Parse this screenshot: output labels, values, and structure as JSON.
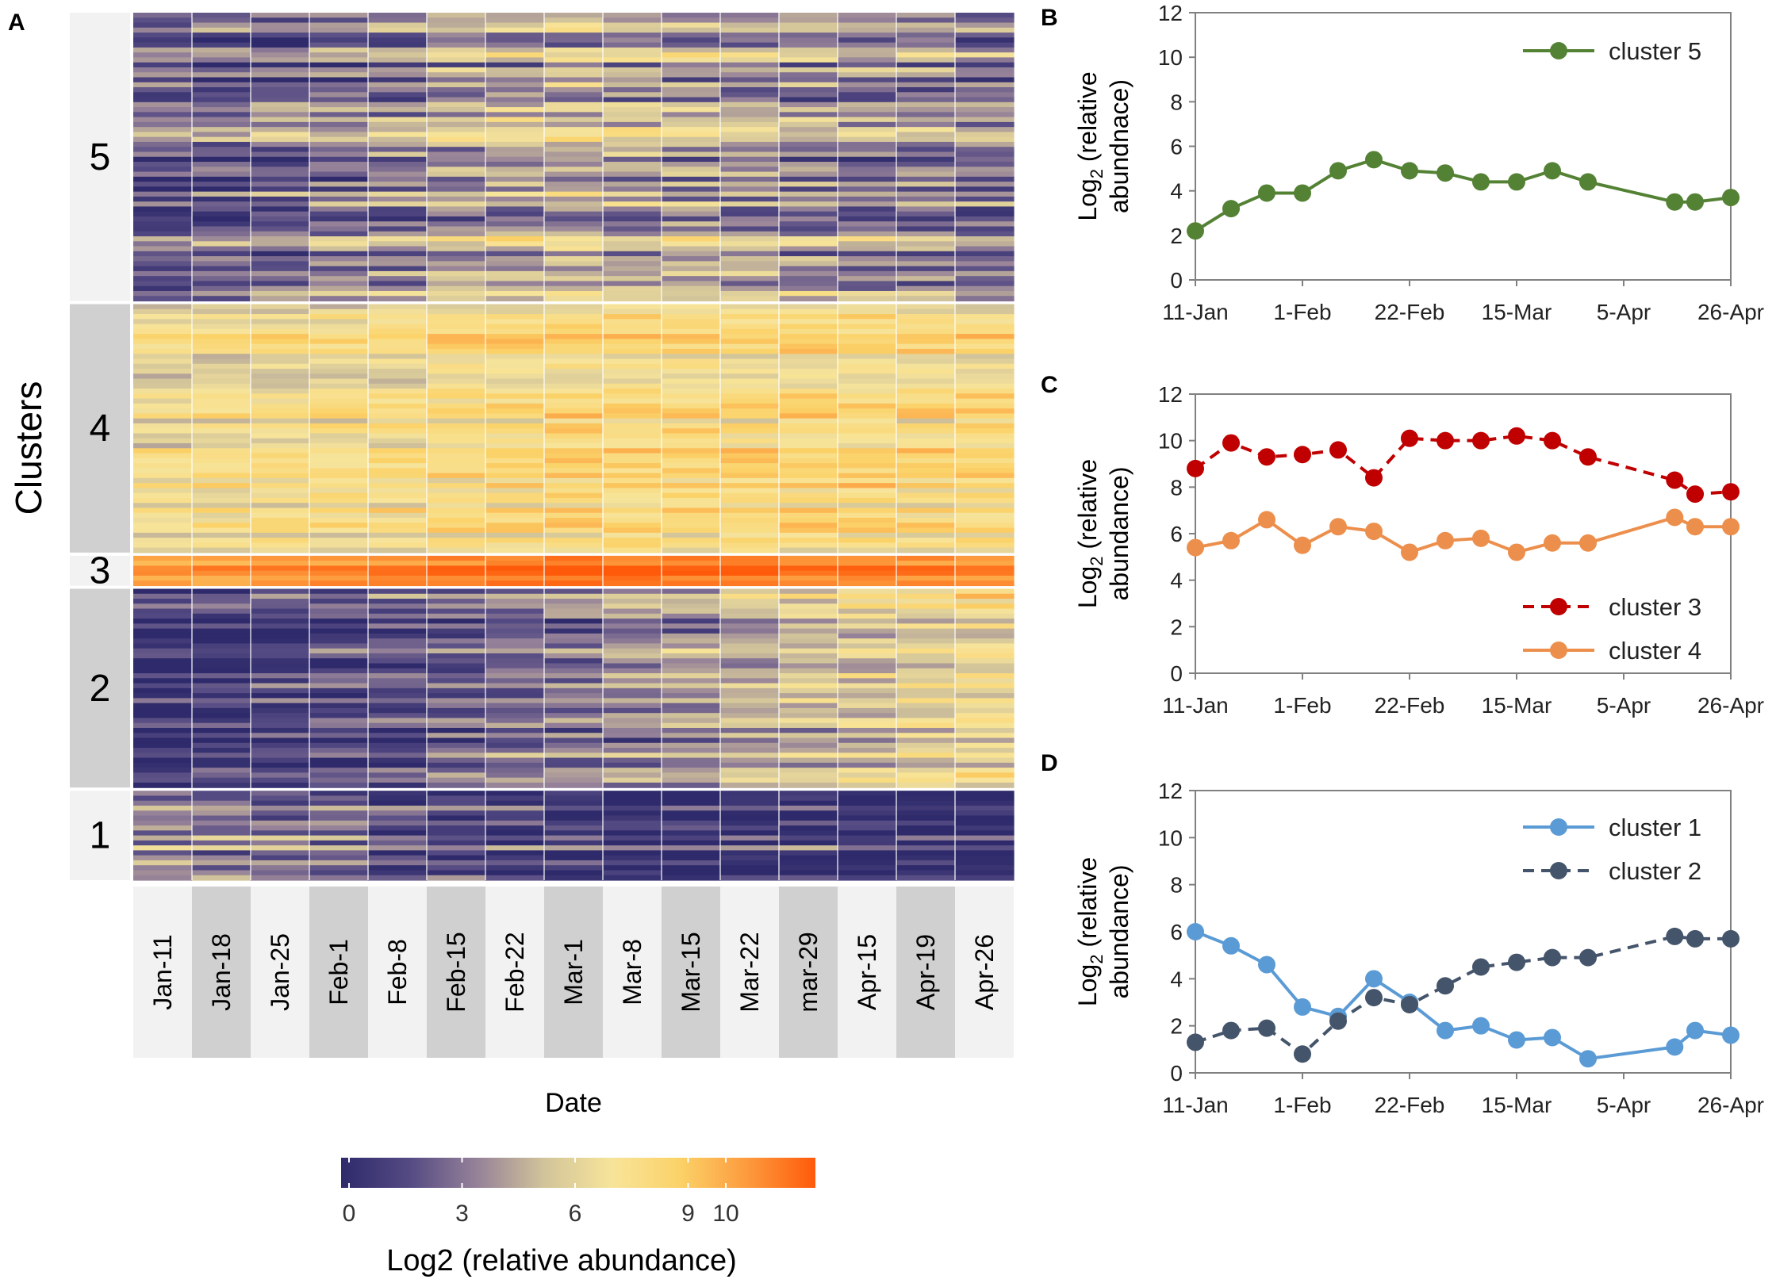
{
  "heatmap": {
    "panel_label": "A",
    "y_title": "Clusters",
    "x_title": "Date",
    "dates": [
      "Jan-11",
      "Jan-18",
      "Jan-25",
      "Feb-1",
      "Feb-8",
      "Feb-15",
      "Feb-22",
      "Mar-1",
      "Mar-8",
      "Mar-15",
      "Mar-22",
      "mar-29",
      "Apr-15",
      "Apr-19",
      "Apr-26"
    ],
    "clusters": [
      {
        "label": "5",
        "rows": 58,
        "seed": 5
      },
      {
        "label": "4",
        "rows": 50,
        "seed": 4
      },
      {
        "label": "3",
        "rows": 6,
        "seed": 3
      },
      {
        "label": "2",
        "rows": 40,
        "seed": 2
      },
      {
        "label": "1",
        "rows": 18,
        "seed": 1
      }
    ],
    "colorbar": {
      "title": "Log2 (relative abundance)",
      "ticks": [
        "0",
        "3",
        "6",
        "9",
        "10"
      ],
      "tick_values": [
        0,
        3,
        6,
        9,
        10
      ],
      "range": [
        0,
        12
      ],
      "colors": [
        "#2e2a6b",
        "#544a83",
        "#958198",
        "#d2c49a",
        "#f7e49a",
        "#fbd268",
        "#fd9a3d",
        "#fe5a0a"
      ]
    }
  },
  "chart_data": [
    {
      "panel": "B",
      "type": "line",
      "title": "",
      "xlabel": "",
      "ylabel_main": "Log",
      "ylabel_sub": "2",
      "ylabel_rest": " (relative",
      "ylabel_line2": "abundnace)",
      "ylim": [
        0,
        12
      ],
      "yticks": [
        "0",
        "2",
        "4",
        "6",
        "8",
        "10",
        "12"
      ],
      "xticks": [
        "11-Jan",
        "1-Feb",
        "22-Feb",
        "15-Mar",
        "5-Apr",
        "26-Apr"
      ],
      "xtick_days": [
        0,
        21,
        42,
        63,
        84,
        105
      ],
      "x_days": [
        0,
        7,
        14,
        21,
        28,
        35,
        42,
        49,
        56,
        63,
        70,
        77,
        94,
        98,
        105
      ],
      "legend_position": "top-right",
      "series": [
        {
          "name": "cluster 5",
          "color": "#548235",
          "dash": false,
          "values": [
            2.2,
            3.2,
            3.9,
            3.9,
            4.9,
            5.4,
            4.9,
            4.8,
            4.4,
            4.4,
            4.9,
            4.4,
            3.5,
            3.5,
            3.7
          ]
        }
      ]
    },
    {
      "panel": "C",
      "type": "line",
      "title": "",
      "xlabel": "",
      "ylabel_main": "Log",
      "ylabel_sub": "2",
      "ylabel_rest": " (relative",
      "ylabel_line2": "abundance)",
      "ylim": [
        0,
        12
      ],
      "yticks": [
        "0",
        "2",
        "4",
        "6",
        "8",
        "10",
        "12"
      ],
      "xticks": [
        "11-Jan",
        "1-Feb",
        "22-Feb",
        "15-Mar",
        "5-Apr",
        "26-Apr"
      ],
      "xtick_days": [
        0,
        21,
        42,
        63,
        84,
        105
      ],
      "x_days": [
        0,
        7,
        14,
        21,
        28,
        35,
        42,
        49,
        56,
        63,
        70,
        77,
        94,
        98,
        105
      ],
      "legend_position": "bottom-right",
      "series": [
        {
          "name": "cluster 3",
          "color": "#c00000",
          "dash": true,
          "values": [
            8.8,
            9.9,
            9.3,
            9.4,
            9.6,
            8.4,
            10.1,
            10.0,
            10.0,
            10.2,
            10.0,
            9.3,
            8.3,
            7.7,
            7.8
          ]
        },
        {
          "name": "cluster 4",
          "color": "#ed8f4c",
          "dash": false,
          "values": [
            5.4,
            5.7,
            6.6,
            5.5,
            6.3,
            6.1,
            5.2,
            5.7,
            5.8,
            5.2,
            5.6,
            5.6,
            6.7,
            6.3,
            6.3
          ]
        }
      ]
    },
    {
      "panel": "D",
      "type": "line",
      "title": "",
      "xlabel": "",
      "ylabel_main": "Log",
      "ylabel_sub": "2",
      "ylabel_rest": " (relative",
      "ylabel_line2": "abundance)",
      "ylim": [
        0,
        12
      ],
      "yticks": [
        "0",
        "2",
        "4",
        "6",
        "8",
        "10",
        "12"
      ],
      "xticks": [
        "11-Jan",
        "1-Feb",
        "22-Feb",
        "15-Mar",
        "5-Apr",
        "26-Apr"
      ],
      "xtick_days": [
        0,
        21,
        42,
        63,
        84,
        105
      ],
      "x_days": [
        0,
        7,
        14,
        21,
        28,
        35,
        42,
        49,
        56,
        63,
        70,
        77,
        94,
        98,
        105
      ],
      "legend_position": "top-right",
      "series": [
        {
          "name": "cluster 1",
          "color": "#5b9bd5",
          "dash": false,
          "values": [
            6.0,
            5.4,
            4.6,
            2.8,
            2.4,
            4.0,
            3.0,
            1.8,
            2.0,
            1.4,
            1.5,
            0.6,
            1.1,
            1.8,
            1.6
          ]
        },
        {
          "name": "cluster 2",
          "color": "#44546a",
          "dash": true,
          "values": [
            1.3,
            1.8,
            1.9,
            0.8,
            2.2,
            3.2,
            2.9,
            3.7,
            4.5,
            4.7,
            4.9,
            4.9,
            5.8,
            5.7,
            5.7
          ]
        }
      ]
    }
  ]
}
